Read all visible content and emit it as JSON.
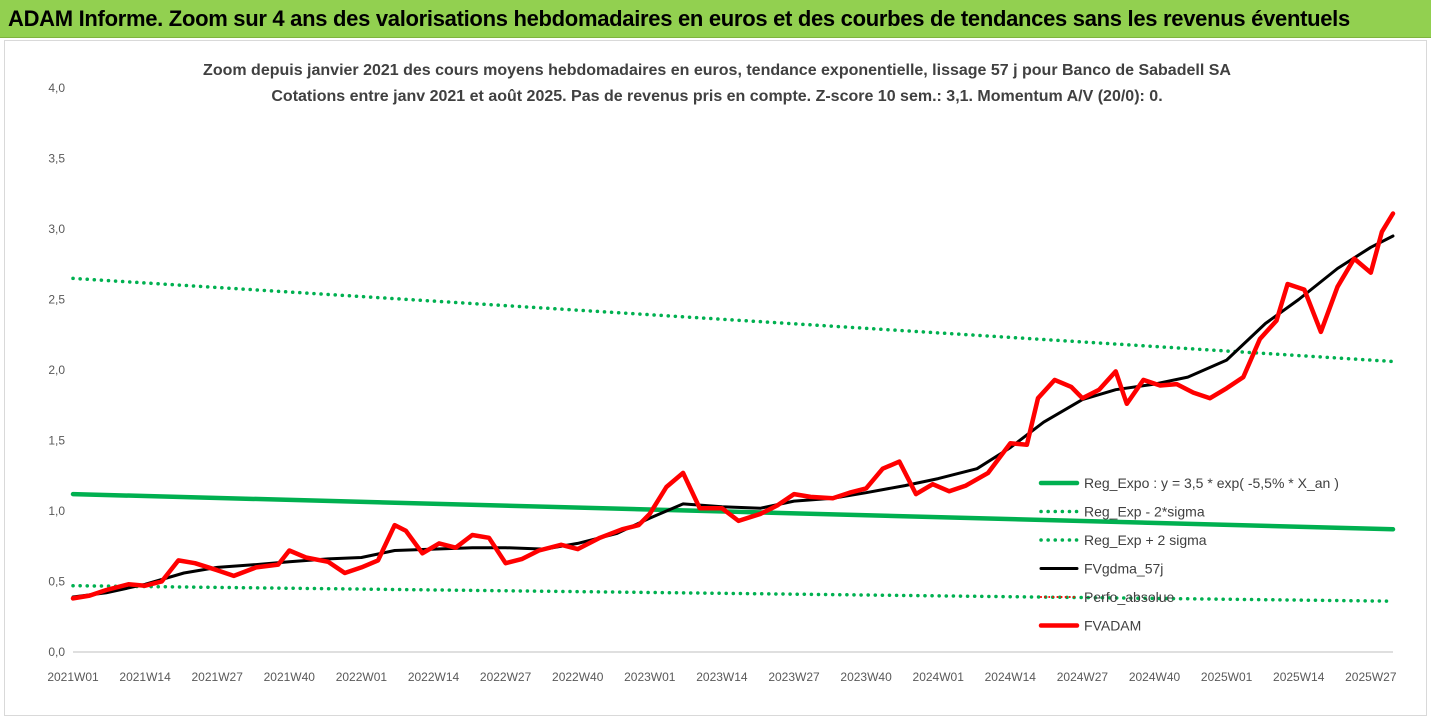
{
  "header": {
    "title": "ADAM Informe. Zoom sur 4 ans des valorisations hebdomadaires en euros et des courbes de tendances sans les revenus éventuels"
  },
  "colors": {
    "banner": "#92d050",
    "reg_expo": "#00b050",
    "fvgdma": "#000000",
    "fvadam": "#ff0000",
    "perfo": "#ff0000"
  },
  "chart_data": {
    "type": "line",
    "title_lines": [
      "Zoom depuis janvier 2021 des cours moyens hebdomadaires en euros, tendance exponentielle, lissage 57 j pour Banco de Sabadell SA",
      "Cotations entre janv 2021 et août 2025.  Pas de revenus pris en compte. Z-score 10 sem.: 3,1. Momentum A/V (20/0): 0."
    ],
    "ylim": [
      0,
      4
    ],
    "y_ticks": [
      "0,0",
      "0,5",
      "1,0",
      "1,5",
      "2,0",
      "2,5",
      "3,0",
      "3,5",
      "4,0"
    ],
    "x_labels": [
      "2021W01",
      "2021W14",
      "2021W27",
      "2021W40",
      "2022W01",
      "2022W14",
      "2022W27",
      "2022W40",
      "2023W01",
      "2023W14",
      "2023W27",
      "2023W40",
      "2024W01",
      "2024W14",
      "2024W27",
      "2024W40",
      "2025W01",
      "2025W14",
      "2025W27"
    ],
    "x_week_index": [
      0,
      13,
      26,
      39,
      52,
      65,
      78,
      91,
      104,
      117,
      130,
      143,
      156,
      169,
      182,
      195,
      208,
      221,
      234
    ],
    "x_range": [
      0,
      238
    ],
    "legend": {
      "placement": "right",
      "entries": [
        {
          "key": "reg_expo",
          "label": "Reg_Expo : y = 3,5 * exp( -5,5% *  X_an )"
        },
        {
          "key": "reg_minus",
          "label": "Reg_Exp - 2*sigma"
        },
        {
          "key": "reg_plus",
          "label": "Reg_Exp + 2 sigma"
        },
        {
          "key": "fvgdma",
          "label": "FVgdma_57j"
        },
        {
          "key": "perfo",
          "label": "Perfo_absolue"
        },
        {
          "key": "fvadam",
          "label": "FVADAM"
        }
      ]
    },
    "series": [
      {
        "key": "reg_expo",
        "name": "Reg_Expo : y = 3,5 * exp( -5,5% *  X_an )",
        "style": "solid-thick",
        "x": [
          0,
          238
        ],
        "y": [
          1.12,
          0.87
        ]
      },
      {
        "key": "reg_plus",
        "name": "Reg_Exp + 2 sigma",
        "style": "dotted",
        "x": [
          0,
          238
        ],
        "y": [
          2.65,
          2.06
        ]
      },
      {
        "key": "reg_minus",
        "name": "Reg_Exp - 2*sigma",
        "style": "dotted",
        "x": [
          0,
          238
        ],
        "y": [
          0.47,
          0.36
        ]
      },
      {
        "key": "fvgdma",
        "name": "FVgdma_57j",
        "style": "solid",
        "x": [
          0,
          6,
          13,
          20,
          26,
          33,
          39,
          46,
          52,
          58,
          65,
          72,
          78,
          85,
          91,
          98,
          104,
          110,
          117,
          124,
          130,
          137,
          143,
          150,
          156,
          163,
          169,
          175,
          182,
          188,
          195,
          201,
          208,
          215,
          221,
          228,
          234,
          238
        ],
        "y": [
          0.39,
          0.42,
          0.48,
          0.56,
          0.6,
          0.62,
          0.64,
          0.66,
          0.67,
          0.72,
          0.73,
          0.74,
          0.74,
          0.73,
          0.77,
          0.84,
          0.95,
          1.05,
          1.03,
          1.02,
          1.07,
          1.09,
          1.13,
          1.18,
          1.23,
          1.3,
          1.45,
          1.63,
          1.79,
          1.86,
          1.9,
          1.95,
          2.07,
          2.33,
          2.5,
          2.72,
          2.87,
          2.95
        ]
      },
      {
        "key": "fvadam",
        "name": "FVADAM",
        "style": "solid-thick",
        "x": [
          0,
          3,
          6,
          10,
          13,
          16,
          19,
          22,
          26,
          29,
          33,
          37,
          39,
          42,
          46,
          49,
          52,
          55,
          58,
          60,
          63,
          66,
          69,
          72,
          75,
          78,
          81,
          84,
          88,
          91,
          95,
          99,
          102,
          104,
          107,
          110,
          113,
          117,
          120,
          124,
          127,
          130,
          133,
          137,
          140,
          143,
          146,
          149,
          152,
          155,
          158,
          161,
          165,
          169,
          172,
          174,
          177,
          180,
          182,
          185,
          188,
          190,
          193,
          196,
          199,
          202,
          205,
          208,
          211,
          214,
          217,
          219,
          222,
          225,
          228,
          231,
          234,
          236,
          238
        ],
        "y": [
          0.38,
          0.4,
          0.44,
          0.48,
          0.47,
          0.5,
          0.65,
          0.63,
          0.58,
          0.54,
          0.6,
          0.62,
          0.72,
          0.67,
          0.64,
          0.56,
          0.6,
          0.65,
          0.9,
          0.86,
          0.7,
          0.77,
          0.74,
          0.83,
          0.81,
          0.63,
          0.66,
          0.72,
          0.76,
          0.73,
          0.81,
          0.87,
          0.9,
          0.98,
          1.17,
          1.27,
          1.02,
          1.02,
          0.93,
          0.98,
          1.04,
          1.12,
          1.1,
          1.09,
          1.13,
          1.16,
          1.3,
          1.35,
          1.12,
          1.19,
          1.14,
          1.18,
          1.27,
          1.48,
          1.47,
          1.8,
          1.93,
          1.88,
          1.8,
          1.86,
          1.99,
          1.76,
          1.93,
          1.89,
          1.9,
          1.84,
          1.8,
          1.87,
          1.95,
          2.22,
          2.35,
          2.61,
          2.57,
          2.27,
          2.59,
          2.79,
          2.69,
          2.98,
          3.11
        ]
      }
    ]
  }
}
